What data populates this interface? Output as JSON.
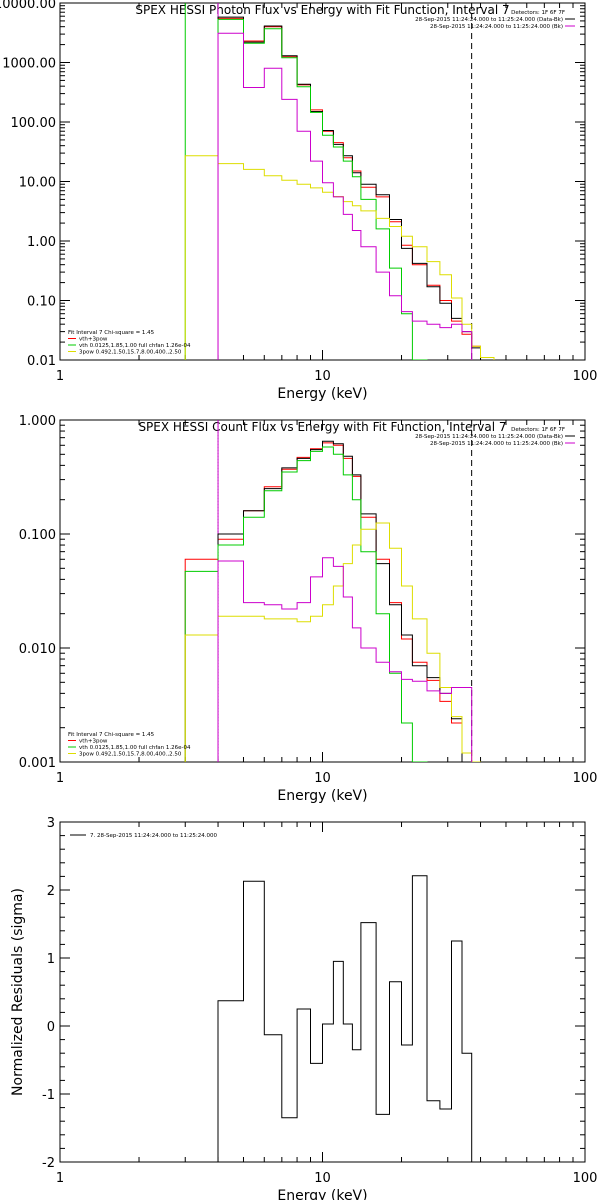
{
  "chart_data": [
    {
      "type": "line",
      "title": "SPEX HESSI Photon Flux vs Energy with Fit Function, Interval 7",
      "xlabel": "Energy (keV)",
      "ylabel": "",
      "xscale": "log",
      "yscale": "log",
      "xlim": [
        1,
        100
      ],
      "ylim": [
        0.01,
        10000
      ],
      "x_ticks": [
        "1",
        "10",
        "100"
      ],
      "y_ticks": [
        "0.01",
        "0.10",
        "1.00",
        "10.00",
        "100.00",
        "1000.00",
        "10000.00"
      ],
      "legend_top": [
        "Detectors: 1F 6F 7F",
        "28-Sep-2015 11:24:24.000 to 11:25:24.000 (Data-Bk)",
        "28-Sep-2015 11:24:24.000 to 11:25:24.000 (Bk)"
      ],
      "legend_bottom": [
        "Fit Interval 7   Chi-square = 1.45",
        "vth+3pow",
        "vth 0.0125,1.85,1.00  full chfan 1.26e-04",
        "3pow 0.492,1.50,15.7,8.00,400.,2.50"
      ],
      "vlines": [
        {
          "x": 3,
          "color": "#00cc00",
          "style": "solid"
        },
        {
          "x": 4,
          "color": "#cc00cc",
          "style": "solid"
        },
        {
          "x": 37,
          "color": "#000000",
          "style": "dashed"
        }
      ],
      "edges": [
        3,
        4,
        5,
        6,
        7,
        8,
        9,
        10,
        11,
        12,
        13,
        14,
        16,
        18,
        20,
        22,
        25,
        28,
        31,
        34,
        37,
        40,
        45
      ],
      "series": [
        {
          "name": "vth+3pow",
          "color": "#ff0000",
          "values": [
            null,
            5500,
            2300,
            4000,
            1250,
            420,
            160,
            70,
            45,
            25,
            15,
            8,
            5.5,
            2.1,
            0.85,
            0.4,
            0.18,
            0.1,
            0.045,
            0.027,
            0.017,
            0.011
          ]
        },
        {
          "name": "Data-Bk",
          "color": "#000000",
          "values": [
            null,
            5800,
            2200,
            4100,
            1300,
            430,
            150,
            72,
            42,
            27,
            14,
            9,
            6,
            2.3,
            0.75,
            0.42,
            0.17,
            0.09,
            0.05,
            0.03,
            0.016,
            null
          ]
        },
        {
          "name": "vth",
          "color": "#00cc00",
          "values": [
            null,
            5300,
            2100,
            3700,
            1200,
            390,
            145,
            60,
            38,
            22,
            12,
            5,
            1.6,
            0.35,
            0.06,
            0.01,
            null,
            null,
            null,
            null,
            null,
            null
          ]
        },
        {
          "name": "3pow",
          "color": "#dddd00",
          "values": [
            27,
            20,
            16,
            12.5,
            10.5,
            9,
            7.8,
            6.6,
            5.6,
            4.6,
            3.9,
            3.2,
            2.4,
            1.75,
            1.2,
            0.8,
            0.45,
            0.27,
            0.11,
            0.04,
            0.017,
            0.011
          ]
        },
        {
          "name": "Bk",
          "color": "#cc00cc",
          "values": [
            null,
            3100,
            380,
            800,
            240,
            70,
            22,
            9.5,
            5.5,
            2.8,
            1.5,
            0.8,
            0.3,
            0.12,
            0.065,
            0.045,
            0.04,
            0.035,
            0.04,
            0.03,
            null,
            null
          ]
        }
      ]
    },
    {
      "type": "line",
      "title": "SPEX HESSI Count Flux vs Energy with Fit Function, Interval 7",
      "xlabel": "Energy (keV)",
      "ylabel": "",
      "xscale": "log",
      "yscale": "log",
      "xlim": [
        1,
        100
      ],
      "ylim": [
        0.001,
        1
      ],
      "x_ticks": [
        "1",
        "10",
        "100"
      ],
      "y_ticks": [
        "0.001",
        "0.010",
        "0.100",
        "1.000"
      ],
      "legend_top": [
        "Detectors: 1F 6F 7F",
        "28-Sep-2015 11:24:24.000 to 11:25:24.000 (Data-Bk)",
        "28-Sep-2015 11:24:24.000 to 11:25:24.000 (Bk)"
      ],
      "legend_bottom": [
        "Fit Interval 7   Chi-square = 1.45",
        "vth+3pow",
        "vth 0.0125,1.85,1.00  full chfan 1.26e-04",
        "3pow 0.492,1.50,15.7,8.00,400.,2.50"
      ],
      "vlines": [
        {
          "x": 4,
          "color": "#000000",
          "style": "dotted"
        },
        {
          "x": 4,
          "color": "#cc00cc",
          "style": "solid"
        },
        {
          "x": 37,
          "color": "#000000",
          "style": "dashed"
        }
      ],
      "edges": [
        3,
        4,
        5,
        6,
        7,
        8,
        9,
        10,
        11,
        12,
        13,
        14,
        16,
        18,
        20,
        22,
        25,
        28,
        31,
        34,
        37,
        40,
        45
      ],
      "series": [
        {
          "name": "vth+3pow",
          "color": "#ff0000",
          "values": [
            0.06,
            0.09,
            0.16,
            0.26,
            0.37,
            0.47,
            0.56,
            0.63,
            0.6,
            0.46,
            0.32,
            0.14,
            0.06,
            0.025,
            0.012,
            0.0075,
            0.0052,
            0.0034,
            0.0022,
            null,
            null,
            null
          ]
        },
        {
          "name": "Data-Bk",
          "color": "#000000",
          "values": [
            null,
            0.1,
            0.16,
            0.25,
            0.38,
            0.46,
            0.55,
            0.65,
            0.62,
            0.48,
            0.33,
            0.15,
            0.055,
            0.024,
            0.013,
            0.007,
            0.0055,
            0.004,
            0.0024,
            null,
            null,
            null
          ]
        },
        {
          "name": "vth",
          "color": "#00cc00",
          "values": [
            0.047,
            0.08,
            0.14,
            0.24,
            0.35,
            0.44,
            0.53,
            0.58,
            0.5,
            0.33,
            0.2,
            0.07,
            0.02,
            0.006,
            0.0022,
            0.001,
            null,
            null,
            null,
            null,
            null,
            null
          ]
        },
        {
          "name": "3pow",
          "color": "#dddd00",
          "values": [
            0.013,
            0.019,
            0.019,
            0.018,
            0.018,
            0.017,
            0.019,
            0.024,
            0.035,
            0.055,
            0.08,
            0.11,
            0.125,
            0.075,
            0.035,
            0.018,
            0.009,
            0.0045,
            0.0025,
            0.0012,
            0.001,
            null
          ]
        },
        {
          "name": "Bk",
          "color": "#cc00cc",
          "values": [
            null,
            0.058,
            0.025,
            0.024,
            0.022,
            0.025,
            0.042,
            0.062,
            0.052,
            0.028,
            0.015,
            0.01,
            0.0075,
            0.0062,
            0.0053,
            0.0051,
            0.0042,
            0.004,
            0.0045,
            0.0045,
            null,
            null
          ]
        }
      ]
    },
    {
      "type": "line",
      "title": "",
      "xlabel": "Energy (keV)",
      "ylabel": "Normalized Residuals (sigma)",
      "xscale": "log",
      "yscale": "linear",
      "xlim": [
        1,
        100
      ],
      "ylim": [
        -2,
        3
      ],
      "x_ticks": [
        "1",
        "10",
        "100"
      ],
      "y_ticks": [
        "-2",
        "-1",
        "0",
        "1",
        "2",
        "3"
      ],
      "legend": [
        "7. 28-Sep-2015 11:24:24.000 to 11:25:24.000"
      ],
      "edges": [
        4,
        5,
        6,
        7,
        8,
        9,
        10,
        11,
        12,
        13,
        14,
        16,
        18,
        20,
        22,
        25,
        28,
        31,
        34,
        37
      ],
      "series": [
        {
          "name": "7. 28-Sep-2015 11:24:24.000 to 11:25:24.000",
          "color": "#000000",
          "values": [
            0.37,
            2.13,
            -0.13,
            -1.35,
            0.25,
            -0.55,
            0.03,
            0.95,
            0.03,
            -0.35,
            1.52,
            -1.3,
            0.65,
            -0.28,
            2.21,
            -1.1,
            -1.22,
            1.25,
            -0.4
          ]
        }
      ]
    }
  ]
}
